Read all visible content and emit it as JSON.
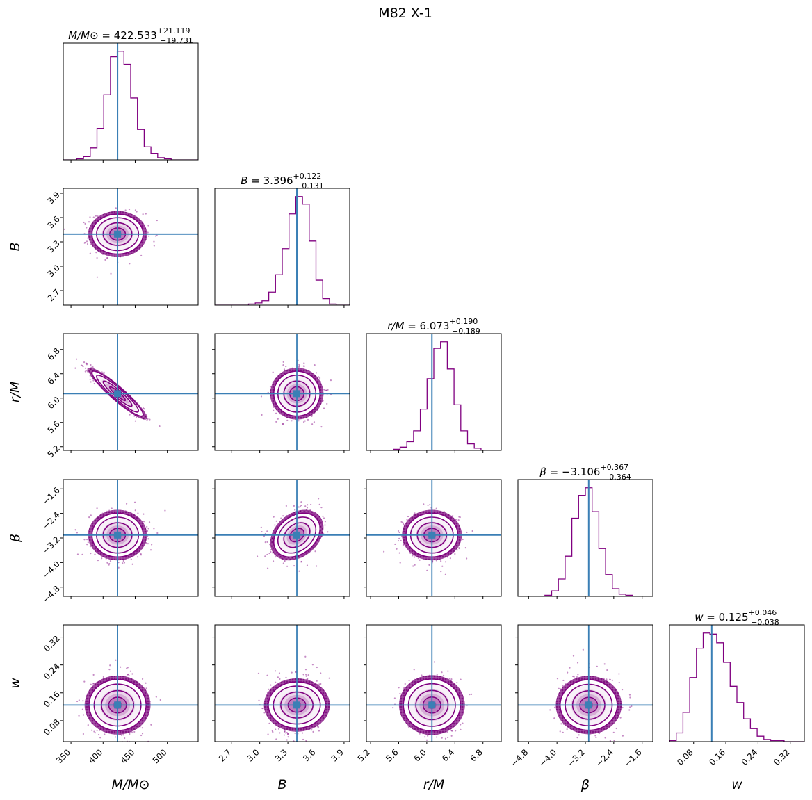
{
  "chart_data": {
    "type": "corner",
    "title": "M82 X-1",
    "colors": {
      "hist": "#800080",
      "truth": "#3a7fb5",
      "frame": "#000000"
    },
    "parameters": [
      {
        "key": "M",
        "label": "M/M⊙",
        "median": 422.533,
        "plus": 21.119,
        "minus": 19.731,
        "title_symbol": "M/M⊙",
        "title_value": " = 422.533",
        "title_plus": "+21.119",
        "title_minus": "−19.731",
        "range": [
          338,
          548
        ],
        "ticks": [
          350,
          400,
          450,
          500
        ],
        "tick_labels": [
          "350",
          "400",
          "450",
          "500"
        ]
      },
      {
        "key": "B",
        "label": "B",
        "median": 3.396,
        "plus": 0.122,
        "minus": 0.131,
        "title_symbol": "B",
        "title_value": " = 3.396",
        "title_plus": "+0.122",
        "title_minus": "−0.131",
        "range": [
          2.52,
          3.96
        ],
        "ticks": [
          2.7,
          3.0,
          3.3,
          3.6,
          3.9
        ],
        "tick_labels": [
          "2.7",
          "3.0",
          "3.3",
          "3.6",
          "3.9"
        ]
      },
      {
        "key": "r",
        "label": "r/M",
        "median": 6.073,
        "plus": 0.19,
        "minus": 0.189,
        "title_symbol": "r/M",
        "title_value": " = 6.073",
        "title_plus": "+0.190",
        "title_minus": "−0.189",
        "range": [
          5.14,
          7.06
        ],
        "ticks": [
          5.2,
          5.6,
          6.0,
          6.4,
          6.8
        ],
        "tick_labels": [
          "5.2",
          "5.6",
          "6.0",
          "6.4",
          "6.8"
        ]
      },
      {
        "key": "beta",
        "label": "β",
        "median": -3.106,
        "plus": 0.367,
        "minus": 0.364,
        "title_symbol": "β",
        "title_value": " = −3.106",
        "title_plus": "+0.367",
        "title_minus": "−0.364",
        "range": [
          -5.1,
          -1.3
        ],
        "ticks": [
          -4.8,
          -4.0,
          -3.2,
          -2.4,
          -1.6
        ],
        "tick_labels": [
          "−4.8",
          "−4.0",
          "−3.2",
          "−2.4",
          "−1.6"
        ]
      },
      {
        "key": "w",
        "label": "w",
        "median": 0.125,
        "plus": 0.046,
        "minus": 0.038,
        "title_symbol": "w",
        "title_value": " = 0.125",
        "title_plus": "+0.046",
        "title_minus": "−0.038",
        "range": [
          0.02,
          0.355
        ],
        "ticks": [
          0.08,
          0.16,
          0.24,
          0.32
        ],
        "tick_labels": [
          "0.08",
          "0.16",
          "0.24",
          "0.32"
        ]
      }
    ],
    "histograms": [
      {
        "param": "M",
        "bins": [
          338,
          548
        ],
        "counts": [
          0,
          0,
          0.01,
          0.03,
          0.11,
          0.29,
          0.6,
          0.95,
          1.0,
          0.88,
          0.57,
          0.28,
          0.12,
          0.06,
          0.02,
          0.01,
          0,
          0,
          0,
          0
        ]
      },
      {
        "param": "B",
        "bins": [
          2.52,
          3.96
        ],
        "counts": [
          0,
          0,
          0,
          0,
          0,
          0.01,
          0.02,
          0.04,
          0.12,
          0.28,
          0.52,
          0.84,
          1.0,
          0.93,
          0.59,
          0.23,
          0.06,
          0.01,
          0,
          0
        ]
      },
      {
        "param": "r",
        "bins": [
          5.14,
          7.06
        ],
        "counts": [
          0,
          0,
          0,
          0,
          0.01,
          0.03,
          0.08,
          0.18,
          0.38,
          0.66,
          0.94,
          1.0,
          0.75,
          0.42,
          0.18,
          0.06,
          0.02,
          0,
          0,
          0
        ]
      },
      {
        "param": "beta",
        "bins": [
          -5.1,
          -1.3
        ],
        "counts": [
          0,
          0,
          0,
          0,
          0.01,
          0.05,
          0.16,
          0.37,
          0.72,
          0.93,
          1.0,
          0.78,
          0.44,
          0.2,
          0.07,
          0.02,
          0.01,
          0,
          0,
          0
        ]
      },
      {
        "param": "w",
        "bins": [
          0.02,
          0.355
        ],
        "counts": [
          0.01,
          0.08,
          0.27,
          0.59,
          0.86,
          1.0,
          0.99,
          0.91,
          0.73,
          0.51,
          0.36,
          0.21,
          0.12,
          0.05,
          0.02,
          0.01,
          0.01,
          0,
          0,
          0
        ]
      }
    ],
    "pairs": [
      {
        "x": "M",
        "y": "B",
        "correlation": 0.0
      },
      {
        "x": "M",
        "y": "r",
        "correlation": -0.93
      },
      {
        "x": "B",
        "y": "r",
        "correlation": 0.0
      },
      {
        "x": "M",
        "y": "beta",
        "correlation": 0.0
      },
      {
        "x": "B",
        "y": "beta",
        "correlation": 0.3
      },
      {
        "x": "r",
        "y": "beta",
        "correlation": 0.0
      },
      {
        "x": "M",
        "y": "w",
        "correlation": 0.0
      },
      {
        "x": "B",
        "y": "w",
        "correlation": 0.0
      },
      {
        "x": "r",
        "y": "w",
        "correlation": 0.0
      },
      {
        "x": "beta",
        "y": "w",
        "correlation": 0.0
      }
    ],
    "contour_levels": [
      "0.5σ",
      "1σ",
      "1.5σ",
      "2σ"
    ]
  }
}
